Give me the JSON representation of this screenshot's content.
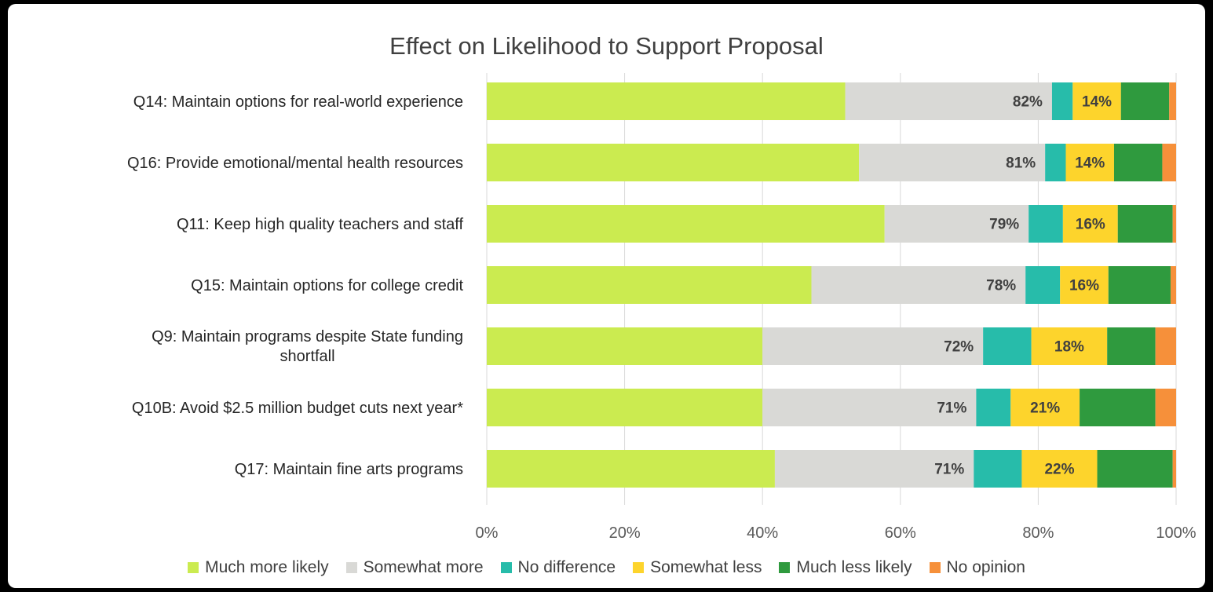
{
  "chart_data": {
    "type": "bar",
    "orientation": "horizontal",
    "stacked": true,
    "title": "Effect on Likelihood to Support Proposal",
    "categories": [
      "Q14: Maintain options for real-world experience",
      "Q16: Provide emotional/mental health resources",
      "Q11: Keep high quality teachers and staff",
      "Q15: Maintain options for college credit",
      "Q9: Maintain programs despite State funding shortfall",
      "Q10B: Avoid $2.5 million budget cuts next year*",
      "Q17: Maintain fine arts programs"
    ],
    "series": [
      {
        "name": "Much more likely",
        "color": "#cbeb50",
        "values": [
          52,
          54,
          58,
          47,
          40,
          40,
          42
        ]
      },
      {
        "name": "Somewhat more",
        "color": "#d9d9d6",
        "values": [
          30,
          27,
          21,
          31,
          32,
          31,
          29
        ]
      },
      {
        "name": "No difference",
        "color": "#27bcaa",
        "values": [
          3,
          3,
          5,
          5,
          7,
          5,
          7
        ]
      },
      {
        "name": "Somewhat less",
        "color": "#fdd42c",
        "values": [
          7,
          7,
          8,
          7,
          11,
          10,
          11
        ]
      },
      {
        "name": "Much less likely",
        "color": "#2f9a3e",
        "values": [
          7,
          7,
          8,
          9,
          7,
          11,
          11
        ]
      },
      {
        "name": "No opinion",
        "color": "#f6903a",
        "values": [
          1,
          2,
          0.5,
          0.8,
          3,
          3,
          0.5
        ]
      }
    ],
    "more_likely_labels": [
      "82%",
      "81%",
      "79%",
      "78%",
      "72%",
      "71%",
      "71%"
    ],
    "less_likely_labels": [
      "14%",
      "14%",
      "16%",
      "16%",
      "18%",
      "21%",
      "22%"
    ],
    "xlim": [
      0,
      100
    ],
    "xticks": [
      "0%",
      "20%",
      "40%",
      "60%",
      "80%",
      "100%"
    ],
    "grid": true,
    "legend_position": "bottom"
  }
}
